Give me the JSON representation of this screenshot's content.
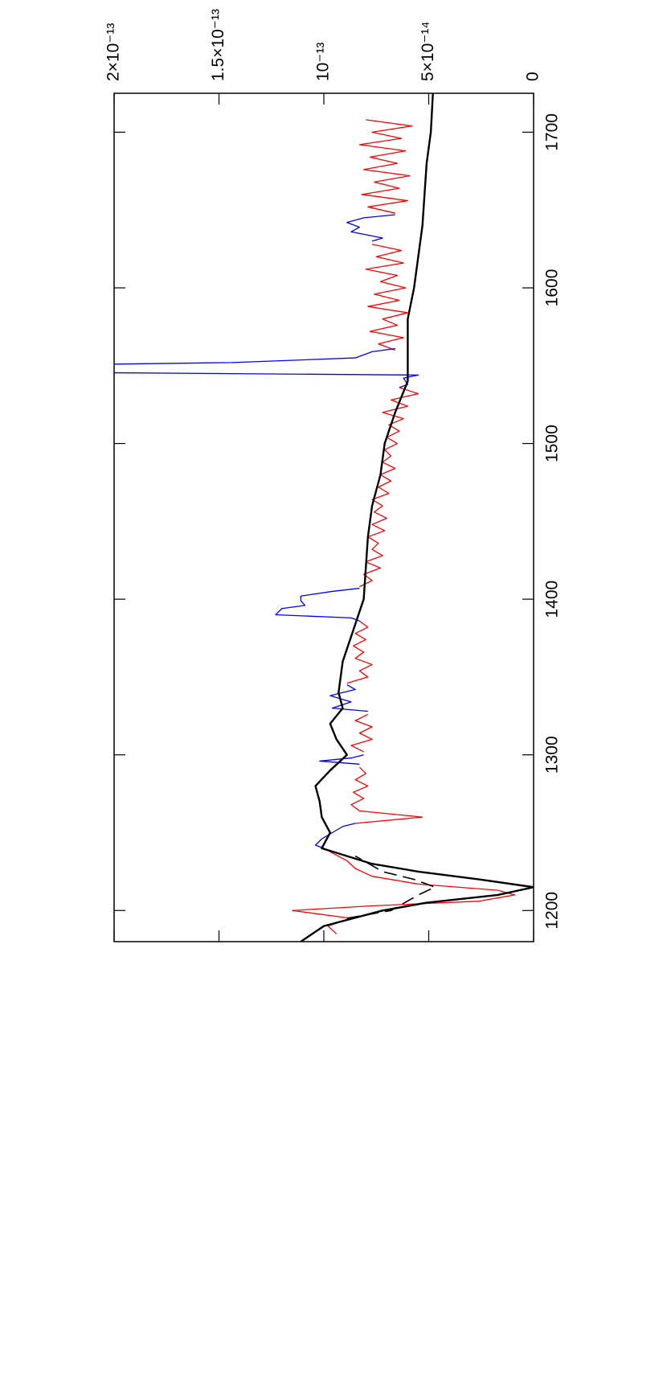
{
  "chart_data": {
    "type": "line",
    "xlim": [
      1180,
      1725
    ],
    "ylim": [
      0,
      2e-13
    ],
    "xticks": [
      1200,
      1300,
      1400,
      1500,
      1600,
      1700
    ],
    "yticks": [
      0,
      {
        "value": 5e-14,
        "label": "5×10⁻¹⁴"
      },
      {
        "value": 1e-13,
        "label": "10⁻¹³"
      },
      {
        "value": 1.5e-13,
        "label": "1.5×10⁻¹³"
      },
      {
        "value": 2e-13,
        "label": "2×10⁻¹³"
      }
    ],
    "series": [
      {
        "color": "#ff0000",
        "x": [
          1185,
          1190,
          1195,
          1200,
          1203,
          1206,
          1210,
          1213,
          1217,
          1222,
          1227,
          1232,
          1237,
          1240,
          1248,
          1256,
          1260,
          1264,
          1268,
          1272,
          1276,
          1280,
          1284,
          1288,
          1292,
          1296,
          1302,
          1306,
          1310,
          1314,
          1318,
          1322,
          1326,
          1335,
          1346,
          1350,
          1354,
          1358,
          1362,
          1366,
          1370,
          1374,
          1378,
          1382,
          1386,
          1395,
          1408,
          1412,
          1416,
          1420,
          1424,
          1428,
          1432,
          1436,
          1440,
          1444,
          1448,
          1452,
          1456,
          1460,
          1464,
          1468,
          1472,
          1476,
          1480,
          1484,
          1488,
          1492,
          1496,
          1500,
          1504,
          1508,
          1512,
          1516,
          1520,
          1524,
          1528,
          1532,
          1536,
          1548,
          1560,
          1564,
          1568,
          1572,
          1576,
          1580,
          1584,
          1588,
          1592,
          1596,
          1600,
          1604,
          1608,
          1612,
          1616,
          1620,
          1624,
          1628,
          1636,
          1648,
          1652,
          1656,
          1660,
          1664,
          1668,
          1672,
          1676,
          1680,
          1684,
          1688,
          1692,
          1696,
          1700,
          1704,
          1708
        ],
        "values": [
          9.4e-14,
          9.8e-14,
          8.7e-14,
          1.15e-13,
          7.7e-14,
          2.6e-14,
          9e-15,
          1.7e-14,
          5.5e-14,
          7.7e-14,
          8.5e-14,
          8.9e-14,
          9.6e-14,
          1e-13,
          null,
          8.5e-14,
          5.3e-14,
          8.3e-14,
          8.7e-14,
          8.1e-14,
          8.6e-14,
          7.9e-14,
          8.5e-14,
          8e-14,
          8.3e-14,
          null,
          8.1e-14,
          8.7e-14,
          7.7e-14,
          8.3e-14,
          7.7e-14,
          8.5e-14,
          7.9e-14,
          null,
          8.9e-14,
          7.9e-14,
          8.3e-14,
          7.7e-14,
          8.5e-14,
          8.1e-14,
          8.6e-14,
          8e-14,
          8.5e-14,
          7.9e-14,
          8.3e-14,
          null,
          8.3e-14,
          7.7e-14,
          8.1e-14,
          7.3e-14,
          8e-14,
          7.2e-14,
          7.7e-14,
          7.4e-14,
          7.9e-14,
          7.1e-14,
          7.7e-14,
          7e-14,
          7.6e-14,
          7.2e-14,
          7.7e-14,
          6.9e-14,
          7.4e-14,
          6.8e-14,
          7.3e-14,
          6.6e-14,
          7.2e-14,
          6.8e-14,
          7.1e-14,
          6.5e-14,
          7e-14,
          6.4e-14,
          6.9e-14,
          6.2e-14,
          7.2e-14,
          6e-14,
          6.8e-14,
          5.5e-14,
          6.4e-14,
          null,
          6.6e-14,
          7.4e-14,
          6.2e-14,
          7.8e-14,
          6.5e-14,
          7.2e-14,
          6e-14,
          7.9e-14,
          6.4e-14,
          7.6e-14,
          6.1e-14,
          7.3e-14,
          6.5e-14,
          8e-14,
          6.2e-14,
          7.5e-14,
          6.3e-14,
          7.7e-14,
          null,
          6.6e-14,
          7.9e-14,
          6e-14,
          8.2e-14,
          6.4e-14,
          7.6e-14,
          5.9e-14,
          8.1e-14,
          6.5e-14,
          7.8e-14,
          6.1e-14,
          8.3e-14,
          6.3e-14,
          7.7e-14,
          5.8e-14,
          8e-14
        ]
      },
      {
        "color": "#0000ff",
        "x": [
          1240,
          1242,
          1246,
          1250,
          1254,
          1256,
          1275,
          1294,
          1296,
          1298,
          1300,
          1315,
          1328,
          1330,
          1334,
          1338,
          1342,
          1345,
          1365,
          1386,
          1388,
          1390,
          1394,
          1396,
          1399,
          1402,
          1405,
          1407,
          1470,
          1536,
          1538,
          1542,
          1544,
          1545.5,
          1549,
          1551,
          1552,
          1555,
          1559,
          1561,
          1600,
          1630,
          1632,
          1636,
          1639,
          1642,
          1645,
          1647
        ],
        "values": [
          1e-13,
          1.04e-13,
          1.01e-13,
          9.6e-14,
          9.1e-14,
          8.5e-14,
          null,
          8.3e-14,
          1.02e-13,
          8.7e-14,
          8.1e-14,
          null,
          7.9e-14,
          9.6e-14,
          8.7e-14,
          9.7e-14,
          8.5e-14,
          8.9e-14,
          null,
          8.3e-14,
          8.7e-14,
          1.23e-13,
          1.2e-13,
          1.09e-13,
          1.11e-13,
          1.11e-13,
          9.6e-14,
          8.3e-14,
          null,
          6.4e-14,
          6e-14,
          6.2e-14,
          5.5e-14,
          2.04e-13,
          2.04e-13,
          2.01e-13,
          1.44e-13,
          8.5e-14,
          7.7e-14,
          6.6e-14,
          null,
          7.7e-14,
          7.2e-14,
          8.7e-14,
          8.3e-14,
          8.9e-14,
          8.1e-14,
          6.6e-14
        ]
      },
      {
        "color": "#000000",
        "dash": true,
        "x": [
          1195,
          1200,
          1210,
          1215,
          1220,
          1225,
          1235
        ],
        "values": [
          8.9e-14,
          6.8e-14,
          5.5e-14,
          4.7e-14,
          5.7e-14,
          7.2e-14,
          8.5e-14
        ]
      },
      {
        "color": "#000000",
        "x": [
          1180,
          1190,
          1200,
          1205,
          1210,
          1215,
          1220,
          1225,
          1230,
          1240,
          1250,
          1260,
          1270,
          1280,
          1290,
          1300,
          1310,
          1320,
          1330,
          1340,
          1360,
          1380,
          1400,
          1420,
          1440,
          1460,
          1480,
          1500,
          1520,
          1540,
          1560,
          1580,
          1600,
          1620,
          1640,
          1660,
          1680,
          1700,
          1725
        ],
        "values": [
          1.11e-13,
          1e-13,
          7.2e-14,
          5.1e-14,
          1.7e-14,
          0,
          2.6e-14,
          5.5e-14,
          7.7e-14,
          1.01e-13,
          9.7e-14,
          1.01e-13,
          1.02e-13,
          1.04e-13,
          9.7e-14,
          8.9e-14,
          9.4e-14,
          9.7e-14,
          9.1e-14,
          9.3e-14,
          9.1e-14,
          8.6e-14,
          8.1e-14,
          8e-14,
          7.9e-14,
          7.7e-14,
          7.3e-14,
          7.1e-14,
          6.6e-14,
          6e-14,
          6e-14,
          6e-14,
          5.7e-14,
          5.5e-14,
          5.3e-14,
          5.2e-14,
          5.1e-14,
          4.9e-14,
          4.8e-14
        ]
      }
    ]
  }
}
